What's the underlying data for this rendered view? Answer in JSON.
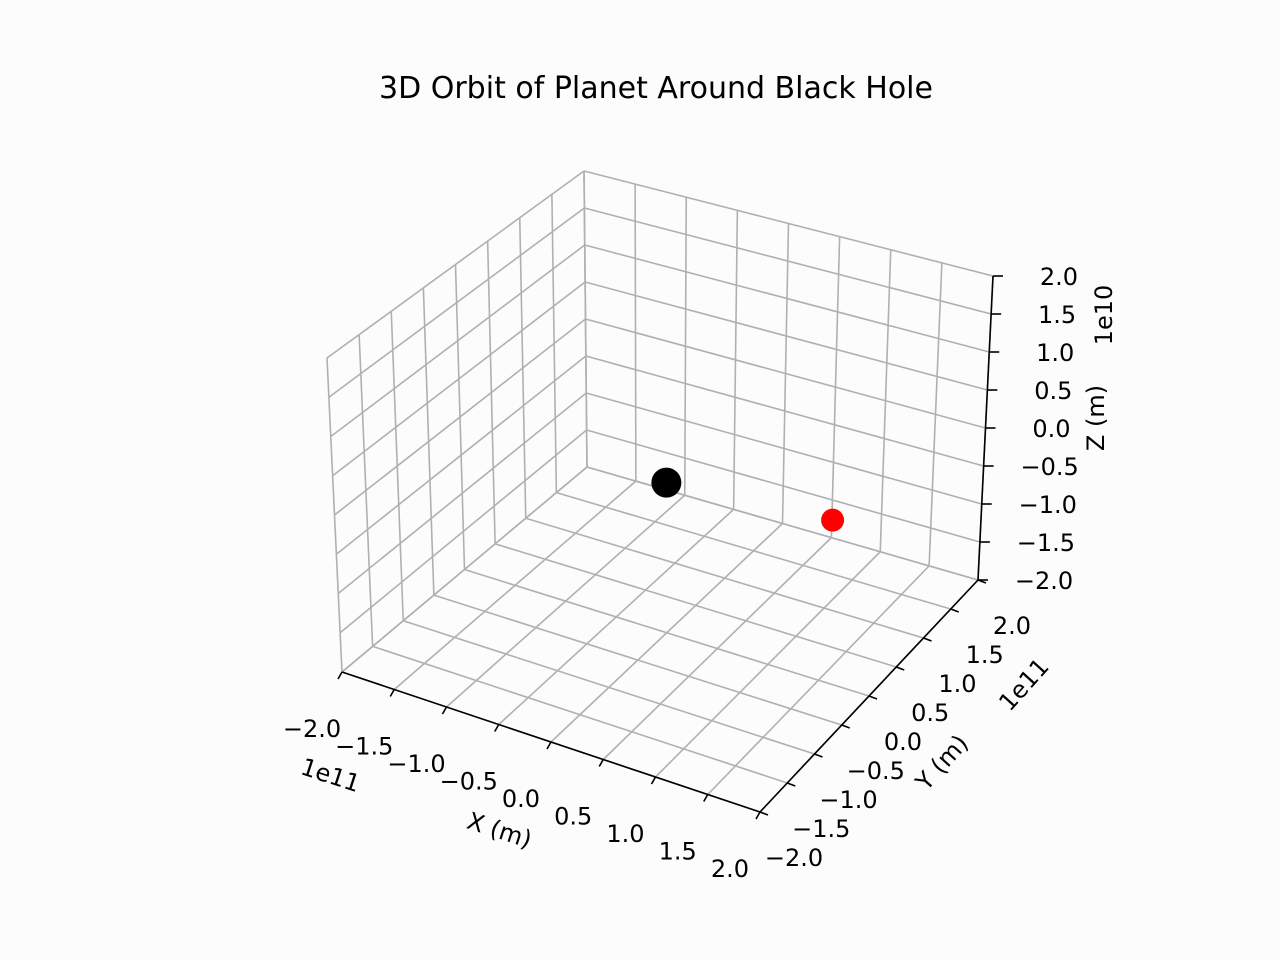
{
  "chart_data": {
    "type": "scatter",
    "projection": "3d",
    "title": "3D Orbit of Planet Around Black Hole",
    "xlabel": "X (m)",
    "ylabel": "Y (m)",
    "zlabel": "Z (m)",
    "x_offset_label": "1e11",
    "y_offset_label": "1e11",
    "z_offset_label": "1e10",
    "xlim": [
      -2.0,
      2.0
    ],
    "ylim": [
      -2.0,
      2.0
    ],
    "zlim": [
      -2.0,
      2.0
    ],
    "x_ticks": [
      -2.0,
      -1.5,
      -1.0,
      -0.5,
      0.0,
      0.5,
      1.0,
      1.5,
      2.0
    ],
    "y_ticks": [
      -2.0,
      -1.5,
      -1.0,
      -0.5,
      0.0,
      0.5,
      1.0,
      1.5,
      2.0
    ],
    "z_ticks": [
      -2.0,
      -1.5,
      -1.0,
      -0.5,
      0.0,
      0.5,
      1.0,
      1.5,
      2.0
    ],
    "x_tick_labels": [
      "−2.0",
      "−1.5",
      "−1.0",
      "−0.5",
      "0.0",
      "0.5",
      "1.0",
      "1.5",
      "2.0"
    ],
    "y_tick_labels": [
      "−2.0",
      "−1.5",
      "−1.0",
      "−0.5",
      "0.0",
      "0.5",
      "1.0",
      "1.5",
      "2.0"
    ],
    "z_tick_labels": [
      "−2.0",
      "−1.5",
      "−1.0",
      "−0.5",
      "0.0",
      "0.5",
      "1.0",
      "1.5",
      "2.0"
    ],
    "grid": true,
    "series": [
      {
        "color": "#000000",
        "points": [
          {
            "x": 0.0,
            "y": 0.0,
            "z": 0.0
          }
        ]
      },
      {
        "color": "#ff0000",
        "points": [
          {
            "x": 1.5,
            "y": 0.2,
            "z": 0.0
          }
        ]
      }
    ]
  }
}
